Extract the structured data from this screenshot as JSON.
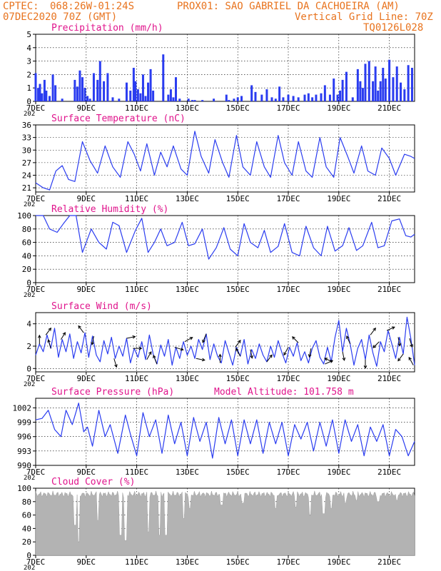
{
  "header": {
    "line1_left": "CPTEC:",
    "line1_coords": "068:26W-01:24S",
    "line1_station": "PROX01: SAO GABRIEL DA CACHOEIRA (AM)",
    "line2_left": "07DEC2020 70Z (GMT)",
    "line2_right": "Vertical Grid Line: 70Z",
    "line3_right": "TQ0126L028"
  },
  "colors": {
    "header": "#e8731e",
    "title": "#e0148c",
    "line": "#2a3cf0",
    "bar": "#2a3cf0",
    "cloud": "#b3b3b3",
    "arrow": "#000000"
  },
  "x_axis": {
    "day_start": 7,
    "day_end": 22,
    "tick_labels": [
      "7DEC",
      "9DEC",
      "11DEC",
      "13DEC",
      "15DEC",
      "17DEC",
      "19DEC",
      "21DEC"
    ],
    "tick_days": [
      7,
      9,
      11,
      13,
      15,
      17,
      19,
      21
    ],
    "year_stub": "202"
  },
  "chart_data": [
    {
      "id": "precip",
      "type": "bar",
      "title": "Precipitation (mm/h)",
      "ylim": [
        0,
        5
      ],
      "yticks": [
        "0",
        "1",
        "2",
        "3",
        "4",
        "5"
      ],
      "ytick_values": [
        0,
        1,
        2,
        3,
        4,
        5
      ],
      "x": [
        7.0,
        7.1,
        7.17,
        7.25,
        7.35,
        7.42,
        7.55,
        7.68,
        7.78,
        8.05,
        8.55,
        8.65,
        8.75,
        8.85,
        8.95,
        9.05,
        9.15,
        9.3,
        9.45,
        9.55,
        9.7,
        9.85,
        10.05,
        10.3,
        10.6,
        10.75,
        10.88,
        10.95,
        11.05,
        11.15,
        11.25,
        11.35,
        11.45,
        11.55,
        11.65,
        12.05,
        12.25,
        12.35,
        12.45,
        12.55,
        12.7,
        13.05,
        13.2,
        13.3,
        13.6,
        14.05,
        14.55,
        14.65,
        14.85,
        15.0,
        15.15,
        15.55,
        15.7,
        15.95,
        16.15,
        16.35,
        16.5,
        16.65,
        16.8,
        17.0,
        17.2,
        17.4,
        17.65,
        17.8,
        17.95,
        18.1,
        18.3,
        18.45,
        18.65,
        18.8,
        18.95,
        19.05,
        19.15,
        19.3,
        19.55,
        19.75,
        19.85,
        19.95,
        20.05,
        20.2,
        20.35,
        20.45,
        20.55,
        20.65,
        20.75,
        20.85,
        21.0,
        21.15,
        21.3,
        21.45,
        21.6,
        21.75,
        21.9
      ],
      "values": [
        2.1,
        1.0,
        1.3,
        0.6,
        1.6,
        0.8,
        0.4,
        2.0,
        1.2,
        0.2,
        1.6,
        1.1,
        2.3,
        1.8,
        1.0,
        0.4,
        0.2,
        2.1,
        1.6,
        3.0,
        1.5,
        2.1,
        0.3,
        0.2,
        1.4,
        0.8,
        2.5,
        1.5,
        0.9,
        0.6,
        2.0,
        0.4,
        1.4,
        2.4,
        0.8,
        3.5,
        0.5,
        0.9,
        0.3,
        1.8,
        0.2,
        0.2,
        0.1,
        0.1,
        0.1,
        0.2,
        0.5,
        0.1,
        0.2,
        0.3,
        0.4,
        1.2,
        0.7,
        0.5,
        0.9,
        0.3,
        0.2,
        1.1,
        0.3,
        0.5,
        0.4,
        0.3,
        0.5,
        0.6,
        0.3,
        0.5,
        0.6,
        1.2,
        0.5,
        1.7,
        0.5,
        0.8,
        1.6,
        2.2,
        0.3,
        2.4,
        1.5,
        1.0,
        2.8,
        3.0,
        1.5,
        2.6,
        0.8,
        1.5,
        2.5,
        1.7,
        3.1,
        1.8,
        2.6,
        1.4,
        0.9,
        2.7,
        2.5
      ]
    },
    {
      "id": "temp",
      "type": "line",
      "title": "Surface Temperature (nC)",
      "ylim": [
        20,
        36
      ],
      "yticks": [
        "21",
        "24",
        "27",
        "30",
        "33",
        "36"
      ],
      "ytick_values": [
        21,
        24,
        27,
        30,
        33,
        36
      ],
      "x": [
        7.0,
        7.3,
        7.55,
        7.8,
        8.05,
        8.3,
        8.55,
        8.85,
        9.15,
        9.45,
        9.75,
        10.05,
        10.35,
        10.65,
        10.9,
        11.15,
        11.4,
        11.7,
        11.95,
        12.2,
        12.45,
        12.75,
        13.0,
        13.3,
        13.55,
        13.85,
        14.1,
        14.4,
        14.65,
        14.95,
        15.2,
        15.5,
        15.75,
        16.05,
        16.3,
        16.6,
        16.85,
        17.15,
        17.4,
        17.7,
        17.95,
        18.25,
        18.5,
        18.8,
        19.05,
        19.35,
        19.6,
        19.9,
        20.15,
        20.45,
        20.7,
        21.0,
        21.25,
        21.6,
        21.85,
        22.0
      ],
      "values": [
        22.2,
        21.0,
        20.5,
        25.0,
        26.3,
        23.0,
        22.5,
        32.0,
        27.5,
        24.5,
        31.0,
        26.0,
        23.5,
        32.0,
        29.0,
        25.0,
        31.5,
        24.0,
        29.5,
        26.0,
        31.0,
        25.5,
        24.0,
        34.5,
        28.5,
        24.5,
        32.5,
        27.0,
        23.5,
        33.5,
        26.0,
        24.0,
        32.0,
        26.0,
        23.5,
        33.5,
        27.0,
        24.0,
        32.0,
        25.0,
        23.5,
        33.0,
        26.0,
        23.5,
        33.0,
        28.5,
        24.5,
        31.0,
        25.0,
        24.0,
        30.5,
        28.0,
        24.0,
        29.0,
        28.5,
        28.0
      ]
    },
    {
      "id": "rh",
      "type": "line",
      "title": "Relative Humidity (%)",
      "ylim": [
        0,
        100
      ],
      "yticks": [
        "0",
        "20",
        "40",
        "60",
        "80",
        "100"
      ],
      "ytick_values": [
        0,
        20,
        40,
        60,
        80,
        100
      ],
      "x": [
        7.0,
        7.3,
        7.55,
        7.85,
        8.1,
        8.35,
        8.6,
        8.85,
        9.2,
        9.5,
        9.8,
        10.05,
        10.3,
        10.6,
        10.95,
        11.2,
        11.45,
        11.7,
        11.95,
        12.2,
        12.5,
        12.8,
        13.05,
        13.3,
        13.6,
        13.85,
        14.15,
        14.45,
        14.7,
        15.0,
        15.25,
        15.5,
        15.8,
        16.05,
        16.3,
        16.6,
        16.85,
        17.15,
        17.45,
        17.7,
        18.0,
        18.3,
        18.55,
        18.85,
        19.15,
        19.4,
        19.7,
        19.95,
        20.3,
        20.55,
        20.8,
        21.1,
        21.4,
        21.65,
        21.85,
        22.0
      ],
      "values": [
        100,
        100,
        80,
        75,
        88,
        100,
        100,
        45,
        80,
        60,
        50,
        90,
        85,
        45,
        78,
        96,
        45,
        60,
        80,
        55,
        60,
        90,
        55,
        58,
        80,
        35,
        52,
        82,
        50,
        40,
        88,
        60,
        52,
        78,
        45,
        54,
        88,
        45,
        40,
        84,
        52,
        40,
        84,
        47,
        55,
        82,
        48,
        55,
        90,
        52,
        55,
        92,
        95,
        70,
        68,
        72
      ]
    },
    {
      "id": "wind",
      "type": "line",
      "title": "Surface Wind (m/s)",
      "ylim": [
        -0.3,
        5.0
      ],
      "yticks": [
        "0",
        "2",
        "4"
      ],
      "ytick_values": [
        0,
        2,
        4
      ],
      "x": [
        7.0,
        7.15,
        7.3,
        7.45,
        7.6,
        7.75,
        7.9,
        8.05,
        8.2,
        8.35,
        8.5,
        8.65,
        8.8,
        8.95,
        9.1,
        9.25,
        9.4,
        9.55,
        9.7,
        9.85,
        10.0,
        10.15,
        10.3,
        10.45,
        10.6,
        10.75,
        10.9,
        11.05,
        11.2,
        11.35,
        11.5,
        11.65,
        11.8,
        11.95,
        12.1,
        12.25,
        12.4,
        12.55,
        12.7,
        12.85,
        13.0,
        13.15,
        13.3,
        13.45,
        13.6,
        13.75,
        13.9,
        14.05,
        14.2,
        14.35,
        14.5,
        14.65,
        14.8,
        14.95,
        15.1,
        15.25,
        15.4,
        15.55,
        15.7,
        15.85,
        16.0,
        16.15,
        16.3,
        16.45,
        16.6,
        16.75,
        16.9,
        17.05,
        17.2,
        17.35,
        17.5,
        17.65,
        17.8,
        17.95,
        18.1,
        18.25,
        18.4,
        18.55,
        18.7,
        18.85,
        19.0,
        19.15,
        19.3,
        19.45,
        19.6,
        19.75,
        19.9,
        20.05,
        20.2,
        20.35,
        20.5,
        20.65,
        20.8,
        20.95,
        21.1,
        21.25,
        21.4,
        21.55,
        21.7,
        21.85,
        22.0
      ],
      "values": [
        1.2,
        2.2,
        1.5,
        3.0,
        1.8,
        3.6,
        1.0,
        2.6,
        1.5,
        3.1,
        0.9,
        2.4,
        1.4,
        3.2,
        1.0,
        2.9,
        1.2,
        0.6,
        2.5,
        1.3,
        2.8,
        0.9,
        2.0,
        1.1,
        2.7,
        0.5,
        1.8,
        1.0,
        2.4,
        0.8,
        3.0,
        1.3,
        0.4,
        2.1,
        1.1,
        2.6,
        0.3,
        1.9,
        0.9,
        2.4,
        1.2,
        2.0,
        0.9,
        2.6,
        1.7,
        3.1,
        0.8,
        2.2,
        1.1,
        0.5,
        2.5,
        1.4,
        0.3,
        1.9,
        1.1,
        2.6,
        0.4,
        1.7,
        0.9,
        2.2,
        1.2,
        0.6,
        2.0,
        1.0,
        2.5,
        1.4,
        0.5,
        1.9,
        1.1,
        2.3,
        0.7,
        1.5,
        0.5,
        1.8,
        2.5,
        1.0,
        0.4,
        1.9,
        0.6,
        2.8,
        4.3,
        1.5,
        3.6,
        2.2,
        0.3,
        1.8,
        2.6,
        0.8,
        3.0,
        1.4,
        0.2,
        2.4,
        1.5,
        3.4,
        2.2,
        0.9,
        2.8,
        1.3,
        4.6,
        2.7,
        0.3
      ],
      "arrows": [
        {
          "day": 7.15,
          "u": 0.0,
          "v": 1.0
        },
        {
          "day": 7.4,
          "u": 0.6,
          "v": 0.8
        },
        {
          "day": 7.6,
          "u": -0.3,
          "v": 1.0
        },
        {
          "day": 8.0,
          "u": 0.5,
          "v": 0.8
        },
        {
          "day": 8.9,
          "u": -0.6,
          "v": 0.8
        },
        {
          "day": 9.3,
          "u": -0.2,
          "v": -1.0
        },
        {
          "day": 10.1,
          "u": 0.3,
          "v": -1.0
        },
        {
          "day": 10.6,
          "u": 1.0,
          "v": 0.2
        },
        {
          "day": 10.85,
          "u": 1.0,
          "v": 0.0
        },
        {
          "day": 11.4,
          "u": 0.5,
          "v": 0.9
        },
        {
          "day": 11.8,
          "u": -0.4,
          "v": 1.0
        },
        {
          "day": 12.5,
          "u": 1.0,
          "v": -0.3
        },
        {
          "day": 12.9,
          "u": 0.9,
          "v": 0.5
        },
        {
          "day": 13.35,
          "u": 1.0,
          "v": -0.2
        },
        {
          "day": 13.75,
          "u": -0.4,
          "v": -1.0
        },
        {
          "day": 14.3,
          "u": 0.0,
          "v": 1.0
        },
        {
          "day": 14.9,
          "u": 0.6,
          "v": 0.8
        },
        {
          "day": 15.1,
          "u": -0.5,
          "v": 0.9
        },
        {
          "day": 15.5,
          "u": 0.2,
          "v": -1.0
        },
        {
          "day": 16.15,
          "u": 0.6,
          "v": 0.8
        },
        {
          "day": 17.0,
          "u": -0.5,
          "v": -0.9
        },
        {
          "day": 17.4,
          "u": -0.7,
          "v": 0.7
        },
        {
          "day": 17.9,
          "u": -0.2,
          "v": -1.0
        },
        {
          "day": 18.45,
          "u": 0.9,
          "v": 0.4
        },
        {
          "day": 18.75,
          "u": -0.9,
          "v": 0.4
        },
        {
          "day": 19.15,
          "u": 0.2,
          "v": -1.0
        },
        {
          "day": 19.45,
          "u": -0.4,
          "v": 0.9
        },
        {
          "day": 20.05,
          "u": 0.0,
          "v": -1.0
        },
        {
          "day": 20.25,
          "u": 0.6,
          "v": 0.8
        },
        {
          "day": 20.6,
          "u": -0.7,
          "v": -0.7
        },
        {
          "day": 20.9,
          "u": 0.9,
          "v": 0.4
        },
        {
          "day": 21.35,
          "u": 0.2,
          "v": -1.0
        },
        {
          "day": 21.55,
          "u": -0.6,
          "v": -0.8
        },
        {
          "day": 21.8,
          "u": 0.3,
          "v": -1.0
        },
        {
          "day": 21.95,
          "u": -0.5,
          "v": 0.9
        }
      ]
    },
    {
      "id": "pres",
      "type": "line",
      "title": "Surface Pressure (hPa)",
      "extra_label": "Model Altitude: 101.758 m",
      "ylim": [
        990,
        1004
      ],
      "yticks": [
        "990",
        "993",
        "996",
        "999",
        "1002"
      ],
      "ytick_values": [
        990,
        993,
        996,
        999,
        1002
      ],
      "x": [
        7.0,
        7.25,
        7.5,
        7.75,
        8.0,
        8.2,
        8.45,
        8.7,
        8.9,
        9.05,
        9.25,
        9.5,
        9.75,
        9.95,
        10.25,
        10.55,
        10.75,
        11.0,
        11.25,
        11.5,
        11.75,
        12.0,
        12.25,
        12.5,
        12.75,
        13.0,
        13.25,
        13.5,
        13.75,
        14.0,
        14.25,
        14.5,
        14.75,
        15.0,
        15.25,
        15.5,
        15.75,
        16.0,
        16.25,
        16.5,
        16.75,
        17.0,
        17.25,
        17.5,
        17.75,
        18.0,
        18.25,
        18.5,
        18.75,
        19.0,
        19.25,
        19.5,
        19.75,
        20.0,
        20.25,
        20.5,
        20.75,
        21.0,
        21.25,
        21.5,
        21.75,
        22.0
      ],
      "values": [
        999.5,
        999.8,
        1001.5,
        997.5,
        996.0,
        1001.5,
        998.5,
        1003.0,
        997.0,
        998.0,
        994.0,
        1001.5,
        996.0,
        998.5,
        992.5,
        1000.5,
        996.5,
        992.0,
        1001.0,
        996.0,
        999.5,
        992.5,
        1000.5,
        994.5,
        999.0,
        992.0,
        1000.0,
        995.0,
        999.0,
        991.5,
        1000.0,
        994.5,
        999.5,
        992.0,
        999.5,
        994.5,
        999.5,
        992.5,
        999.0,
        994.5,
        999.0,
        992.0,
        998.5,
        995.5,
        999.0,
        993.0,
        999.0,
        994.0,
        999.5,
        992.5,
        999.5,
        995.0,
        998.5,
        992.0,
        998.0,
        995.0,
        998.5,
        992.0,
        997.5,
        996.0,
        992.0,
        995.0
      ]
    },
    {
      "id": "cloud",
      "type": "area",
      "title": "Cloud Cover (%)",
      "ylim": [
        0,
        100
      ],
      "yticks": [
        "0",
        "20",
        "40",
        "60",
        "80",
        "100"
      ],
      "ytick_values": [
        0,
        20,
        40,
        60,
        80,
        100
      ],
      "baseline": 91,
      "dips": [
        {
          "day": 8.55,
          "value": 45
        },
        {
          "day": 8.7,
          "value": 20
        },
        {
          "day": 9.45,
          "value": 52
        },
        {
          "day": 10.35,
          "value": 30
        },
        {
          "day": 10.55,
          "value": 22
        },
        {
          "day": 11.45,
          "value": 35
        },
        {
          "day": 11.9,
          "value": 30
        },
        {
          "day": 12.15,
          "value": 30
        },
        {
          "day": 12.85,
          "value": 55
        },
        {
          "day": 13.1,
          "value": 70
        },
        {
          "day": 14.35,
          "value": 75
        },
        {
          "day": 15.2,
          "value": 78
        },
        {
          "day": 16.5,
          "value": 70
        },
        {
          "day": 17.3,
          "value": 72
        },
        {
          "day": 17.85,
          "value": 60
        },
        {
          "day": 18.4,
          "value": 62
        },
        {
          "day": 18.7,
          "value": 70
        },
        {
          "day": 19.25,
          "value": 78
        },
        {
          "day": 19.7,
          "value": 82
        },
        {
          "day": 20.55,
          "value": 80
        },
        {
          "day": 21.3,
          "value": 82
        }
      ]
    }
  ]
}
